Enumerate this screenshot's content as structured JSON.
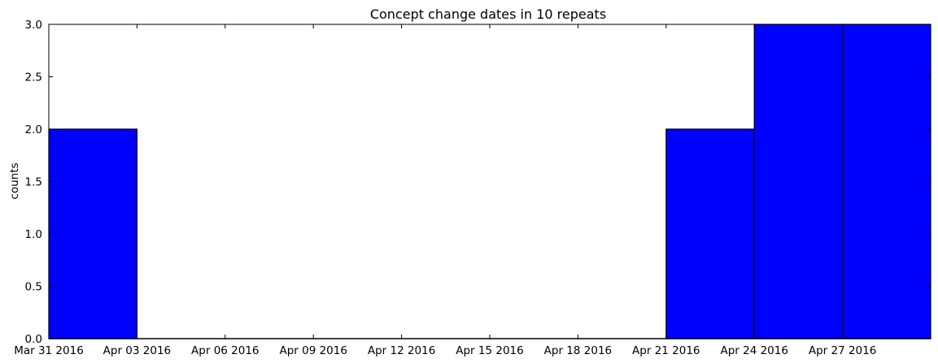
{
  "chart_data": {
    "type": "bar",
    "title": "Concept change dates in 10 repeats",
    "xlabel": "",
    "ylabel": "counts",
    "x_axis": {
      "type": "date",
      "range": [
        "2016-03-31",
        "2016-04-30"
      ],
      "ticks": [
        {
          "date": "2016-03-31",
          "label": "Mar 31 2016"
        },
        {
          "date": "2016-04-03",
          "label": "Apr 03 2016"
        },
        {
          "date": "2016-04-06",
          "label": "Apr 06 2016"
        },
        {
          "date": "2016-04-09",
          "label": "Apr 09 2016"
        },
        {
          "date": "2016-04-12",
          "label": "Apr 12 2016"
        },
        {
          "date": "2016-04-15",
          "label": "Apr 15 2016"
        },
        {
          "date": "2016-04-18",
          "label": "Apr 18 2016"
        },
        {
          "date": "2016-04-21",
          "label": "Apr 21 2016"
        },
        {
          "date": "2016-04-24",
          "label": "Apr 24 2016"
        },
        {
          "date": "2016-04-27",
          "label": "Apr 27 2016"
        }
      ]
    },
    "ylim": [
      0,
      3
    ],
    "y_ticks": [
      "0.0",
      "0.5",
      "1.0",
      "1.5",
      "2.0",
      "2.5",
      "3.0"
    ],
    "grid": false,
    "bar_color": "#0000ff",
    "bins": [
      {
        "start": "2016-03-31",
        "end": "2016-04-03",
        "count": 2
      },
      {
        "start": "2016-04-03",
        "end": "2016-04-06",
        "count": 0
      },
      {
        "start": "2016-04-06",
        "end": "2016-04-09",
        "count": 0
      },
      {
        "start": "2016-04-09",
        "end": "2016-04-12",
        "count": 0
      },
      {
        "start": "2016-04-12",
        "end": "2016-04-15",
        "count": 0
      },
      {
        "start": "2016-04-15",
        "end": "2016-04-18",
        "count": 0
      },
      {
        "start": "2016-04-18",
        "end": "2016-04-21",
        "count": 0
      },
      {
        "start": "2016-04-21",
        "end": "2016-04-24",
        "count": 2
      },
      {
        "start": "2016-04-24",
        "end": "2016-04-27",
        "count": 3
      },
      {
        "start": "2016-04-27",
        "end": "2016-04-30",
        "count": 3
      }
    ]
  }
}
